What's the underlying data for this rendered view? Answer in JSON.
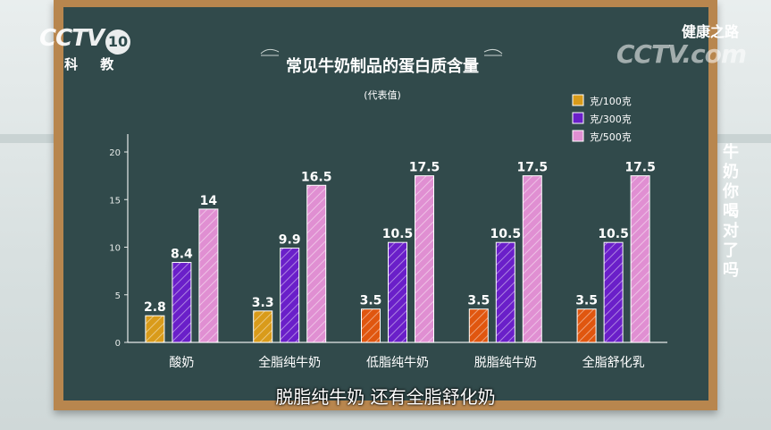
{
  "channel": {
    "logo": "CCTV",
    "channel_number": "10",
    "channel_name": "科 教"
  },
  "program": {
    "name": "健康之路",
    "watermark": "CCTV.com",
    "vertical_title": "牛奶你喝对了吗"
  },
  "subtitle_text": "脱脂纯牛奶 还有全脂舒化奶",
  "colors": {
    "board": "#314a4b",
    "frame": "#b8864e",
    "series_100": "#d99b1a",
    "series_100_alt": "#e0560f",
    "series_300": "#6a1fc9",
    "series_500": "#e08fd2"
  },
  "chart_data": {
    "type": "bar",
    "title": "常见牛奶制品的蛋白质含量",
    "subtitle": "(代表值)",
    "categories": [
      "酸奶",
      "全脂纯牛奶",
      "低脂纯牛奶",
      "脱脂纯牛奶",
      "全脂舒化乳"
    ],
    "series": [
      {
        "name": "克/100克",
        "values": [
          2.8,
          3.3,
          3.5,
          3.5,
          3.5
        ]
      },
      {
        "name": "克/300克",
        "values": [
          8.4,
          9.9,
          10.5,
          10.5,
          10.5
        ]
      },
      {
        "name": "克/500克",
        "values": [
          14,
          16.5,
          17.5,
          17.5,
          17.5
        ]
      }
    ],
    "value_labels": [
      [
        "2.8",
        "3.3",
        "3.5",
        "3.5",
        "3.5"
      ],
      [
        "8.4",
        "9.9",
        "10.5",
        "10.5",
        "10.5"
      ],
      [
        "14",
        "16.5",
        "17.5",
        "17.5",
        "17.5"
      ]
    ],
    "yticks": [
      "0",
      "5",
      "10",
      "15",
      "20"
    ],
    "ylim": [
      0,
      20
    ],
    "grid": false,
    "legend": "top-right"
  }
}
